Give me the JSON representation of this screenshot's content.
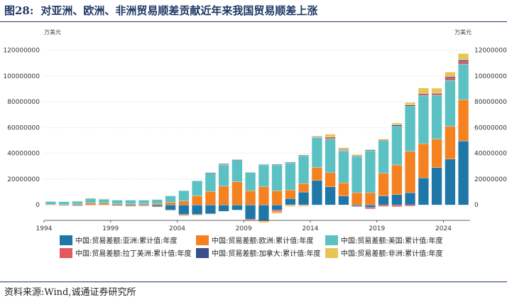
{
  "header": {
    "figure_label": "图28:",
    "title": "对亚洲、欧洲、非洲贸易顺差贡献近年来我国贸易顺差上涨"
  },
  "footer": {
    "source": "资料来源:Wind,诚通证券研究所"
  },
  "chart_data": {
    "type": "bar",
    "stacked": true,
    "left_unit_label": "万美元",
    "right_unit_label": "万美元",
    "x": [
      1994,
      1995,
      1996,
      1997,
      1998,
      1999,
      2000,
      2001,
      2002,
      2003,
      2004,
      2005,
      2006,
      2007,
      2008,
      2009,
      2010,
      2011,
      2012,
      2013,
      2014,
      2015,
      2016,
      2017,
      2018,
      2019,
      2020,
      2021,
      2022,
      2023,
      2024,
      2025
    ],
    "x_ticks": [
      "1994",
      "1999",
      "2004",
      "2009",
      "2014",
      "2019",
      "2024"
    ],
    "ylim": [
      -12000000,
      128000000
    ],
    "y_ticks": [
      0,
      20000000,
      40000000,
      60000000,
      80000000,
      100000000,
      120000000
    ],
    "y_tick_labels": [
      "0",
      "20000000",
      "40000000",
      "60000000",
      "80000000",
      "100000000",
      "120000000"
    ],
    "grid": true,
    "legend_position": "bottom",
    "series": [
      {
        "name": "中国:贸易差额:亚洲:累计值:年度",
        "color": "#1f77a8",
        "values": [
          -300000,
          -500000,
          -700000,
          -300000,
          -200000,
          -600000,
          -900000,
          -700000,
          -1400000,
          -4000000,
          -7500000,
          -7500000,
          -7000000,
          -5000000,
          -4000000,
          -11000000,
          -12000000,
          -4000000,
          5000000,
          10000000,
          19000000,
          14000000,
          7000000,
          -1000000,
          -2000000,
          7000000,
          8000000,
          9500000,
          21000000,
          29000000,
          35500000,
          49500000
        ]
      },
      {
        "name": "中国:贸易差额:欧洲:累计值:年度",
        "color": "#f58220",
        "values": [
          500000,
          400000,
          700000,
          1500000,
          1400000,
          900000,
          900000,
          900000,
          1200000,
          2000000,
          3000000,
          7000000,
          10500000,
          14500000,
          18000000,
          11000000,
          14000000,
          11000000,
          6500000,
          6500000,
          10000000,
          11000000,
          10000000,
          9500000,
          9500000,
          17500000,
          23000000,
          32000000,
          26500000,
          22000000,
          25500000,
          32000000
        ]
      },
      {
        "name": "中国:贸易差额:美国:累计值:年度",
        "color": "#5bc1c2",
        "values": [
          2100000,
          2100000,
          2200000,
          3500000,
          3000000,
          2800000,
          2800000,
          2800000,
          3000000,
          5000000,
          8000000,
          11500000,
          14000000,
          16500000,
          16500000,
          14000000,
          17000000,
          20000000,
          21000000,
          21500000,
          23000000,
          26000000,
          25000000,
          28000000,
          32500000,
          25000000,
          30000000,
          35000000,
          37000000,
          34000000,
          35500000,
          27500000
        ]
      },
      {
        "name": "中国:贸易差额:拉丁美洲:累计值:年度",
        "color": "#e05a60",
        "values": [
          0,
          0,
          100000,
          200000,
          200000,
          0,
          -200000,
          -200000,
          -200000,
          -300000,
          -500000,
          -300000,
          0,
          300000,
          0,
          -700000,
          -700000,
          -1200000,
          -300000,
          -400000,
          300000,
          1000000,
          500000,
          -500000,
          -1100000,
          -1200000,
          -1400000,
          -1000000,
          1000000,
          1200000,
          2000000,
          2000000
        ]
      },
      {
        "name": "中国:贸易差额:加拿大:累计值:年度",
        "color": "#3a4f8a",
        "values": [
          0,
          0,
          0,
          -100000,
          0,
          -100000,
          -100000,
          -100000,
          0,
          0,
          100000,
          300000,
          500000,
          600000,
          600000,
          300000,
          400000,
          500000,
          500000,
          500000,
          500000,
          600000,
          400000,
          500000,
          600000,
          600000,
          1000000,
          900000,
          700000,
          500000,
          1000000,
          1300000
        ]
      },
      {
        "name": "中国:贸易差额:非洲:累计值:年度",
        "color": "#e8c458",
        "values": [
          0,
          -100000,
          100000,
          200000,
          200000,
          0,
          -200000,
          -200000,
          -200000,
          -300000,
          -500000,
          -500000,
          -300000,
          -200000,
          300000,
          -700000,
          -1000000,
          -1500000,
          -1000000,
          -800000,
          600000,
          2200000,
          1500000,
          1000000,
          400000,
          1000000,
          1500000,
          2000000,
          4500000,
          3800000,
          3500000,
          5000000
        ]
      }
    ]
  }
}
